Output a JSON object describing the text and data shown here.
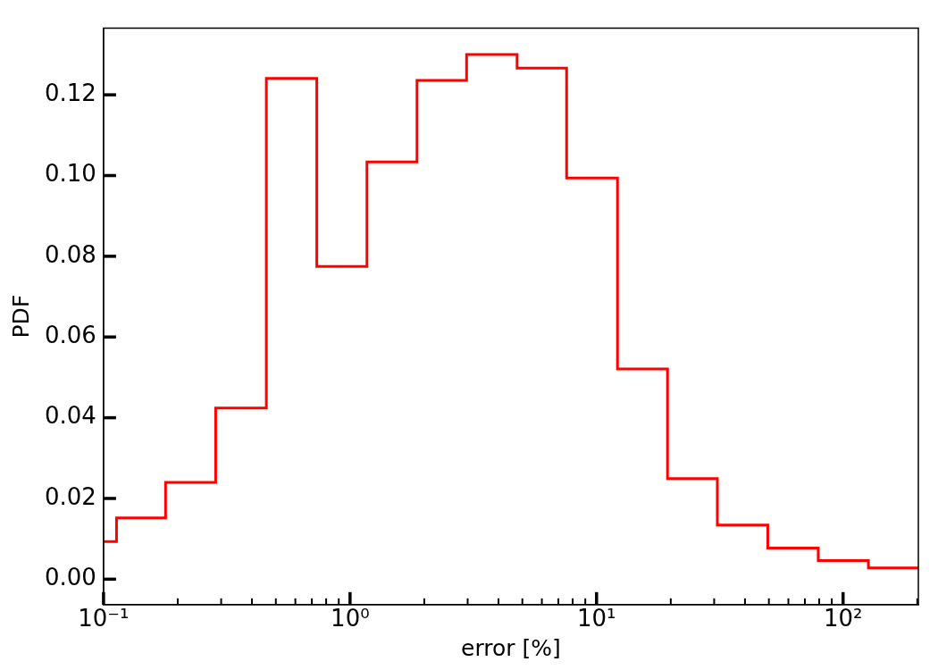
{
  "chart_data": {
    "type": "histogram",
    "xlabel": "error [%]",
    "ylabel": "PDF",
    "color": "#ff0000",
    "log": "x",
    "bins": [
      0.1,
      0.1129,
      0.1785,
      0.285,
      0.4576,
      0.733,
      1.171,
      1.869,
      2.97,
      4.76,
      7.56,
      12.16,
      19.4,
      30.9,
      49.5,
      79.3,
      126.7,
      202
    ],
    "values": [
      0.0093,
      0.0152,
      0.024,
      0.0424,
      0.1241,
      0.0775,
      0.1034,
      0.1236,
      0.13,
      0.1266,
      0.0994,
      0.0521,
      0.0249,
      0.0134,
      0.0077,
      0.0046,
      0.0028
    ],
    "xlim": [
      0.1,
      202
    ],
    "ylim": [
      -0.0063,
      0.1365
    ],
    "xticks": [
      {
        "value": 0.1,
        "label": "10⁻¹"
      },
      {
        "value": 0.2,
        "label": null
      },
      {
        "value": 0.3,
        "label": null
      },
      {
        "value": 0.4,
        "label": null
      },
      {
        "value": 0.5,
        "label": null
      },
      {
        "value": 0.6,
        "label": null
      },
      {
        "value": 0.7,
        "label": null
      },
      {
        "value": 0.8,
        "label": null
      },
      {
        "value": 0.9,
        "label": null
      },
      {
        "value": 1,
        "label": "10⁰"
      },
      {
        "value": 2,
        "label": null
      },
      {
        "value": 3,
        "label": null
      },
      {
        "value": 4,
        "label": null
      },
      {
        "value": 5,
        "label": null
      },
      {
        "value": 6,
        "label": null
      },
      {
        "value": 7,
        "label": null
      },
      {
        "value": 8,
        "label": null
      },
      {
        "value": 9,
        "label": null
      },
      {
        "value": 10,
        "label": "10¹"
      },
      {
        "value": 20,
        "label": null
      },
      {
        "value": 30,
        "label": null
      },
      {
        "value": 40,
        "label": null
      },
      {
        "value": 50,
        "label": null
      },
      {
        "value": 60,
        "label": null
      },
      {
        "value": 70,
        "label": null
      },
      {
        "value": 80,
        "label": null
      },
      {
        "value": 90,
        "label": null
      },
      {
        "value": 100,
        "label": "10²"
      },
      {
        "value": 200,
        "label": null
      }
    ],
    "yticks": [
      {
        "value": 0,
        "label": "0.00"
      },
      {
        "value": 0.02,
        "label": "0.02"
      },
      {
        "value": 0.04,
        "label": "0.04"
      },
      {
        "value": 0.06,
        "label": "0.06"
      },
      {
        "value": 0.08,
        "label": "0.08"
      },
      {
        "value": 0.1,
        "label": "0.10"
      },
      {
        "value": 0.12,
        "label": "0.12"
      }
    ],
    "grid": false,
    "legend": false
  }
}
